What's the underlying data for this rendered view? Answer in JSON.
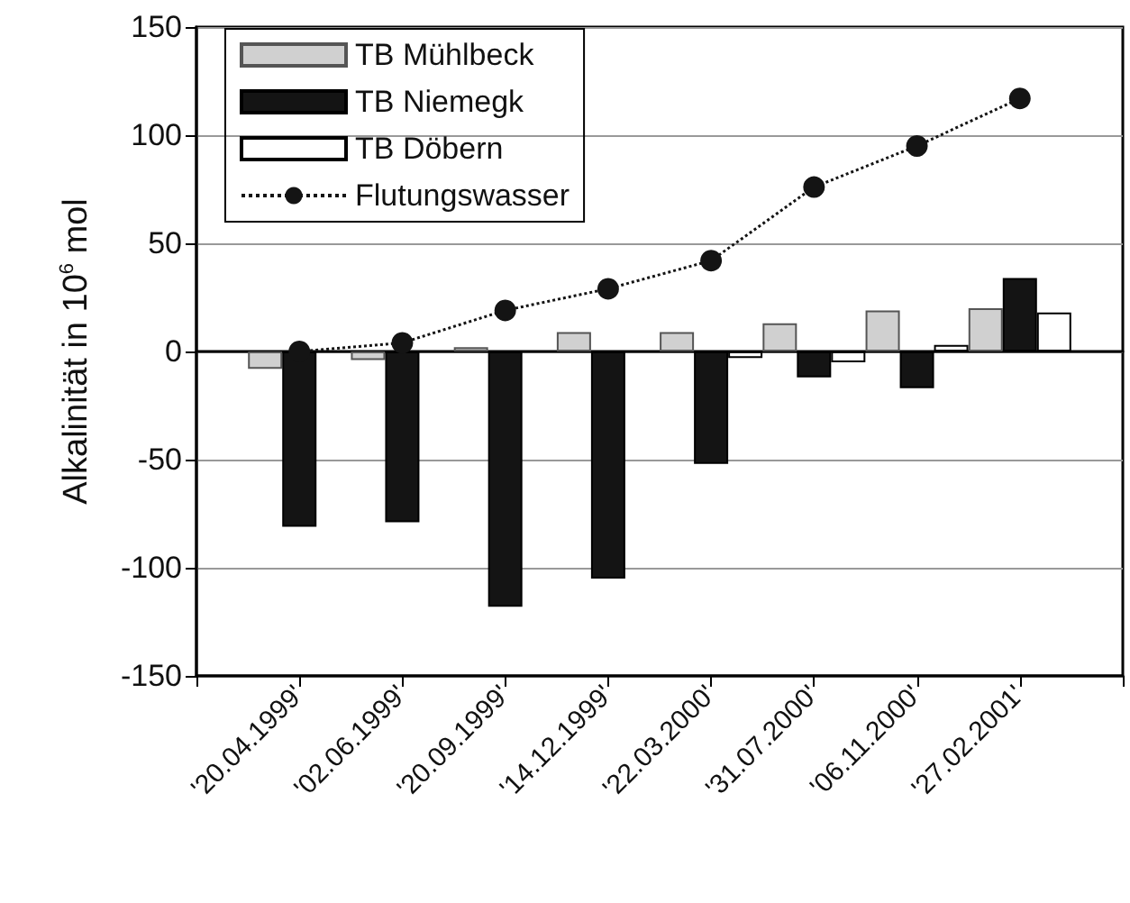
{
  "chart_data": {
    "type": "bar",
    "ylabel": "Alkalinität in 10$^{6}$ mol",
    "categories": [
      "'20.04.1999'",
      "'02.06.1999'",
      "'20.09.1999'",
      "'14.12.1999'",
      "'22.03.2000'",
      "'31.07.2000'",
      "'06.11.2000'",
      "'27.02.2001'"
    ],
    "series": [
      {
        "name": "TB Mühlbeck",
        "color": "#d0d0d0",
        "values": [
          -8,
          -4,
          2,
          9,
          9,
          13,
          19,
          20
        ]
      },
      {
        "name": "TB Niemegk",
        "color": "#141414",
        "values": [
          -81,
          -79,
          -118,
          -105,
          -52,
          -12,
          -17,
          34
        ]
      },
      {
        "name": "TB Döbern",
        "color": "#ffffff",
        "values": [
          null,
          null,
          null,
          null,
          -3,
          -5,
          3,
          18
        ]
      },
      {
        "name": "Flutungswasser",
        "type": "line",
        "color": "#141414",
        "marker": "circle",
        "line_style": "dotted",
        "values": [
          0,
          4,
          19,
          29,
          42,
          76,
          95,
          117
        ]
      }
    ],
    "ylim": [
      -150,
      150
    ],
    "yticks": [
      -150,
      -100,
      -50,
      0,
      50,
      100,
      150
    ],
    "grid": "y",
    "legend": "top left"
  }
}
